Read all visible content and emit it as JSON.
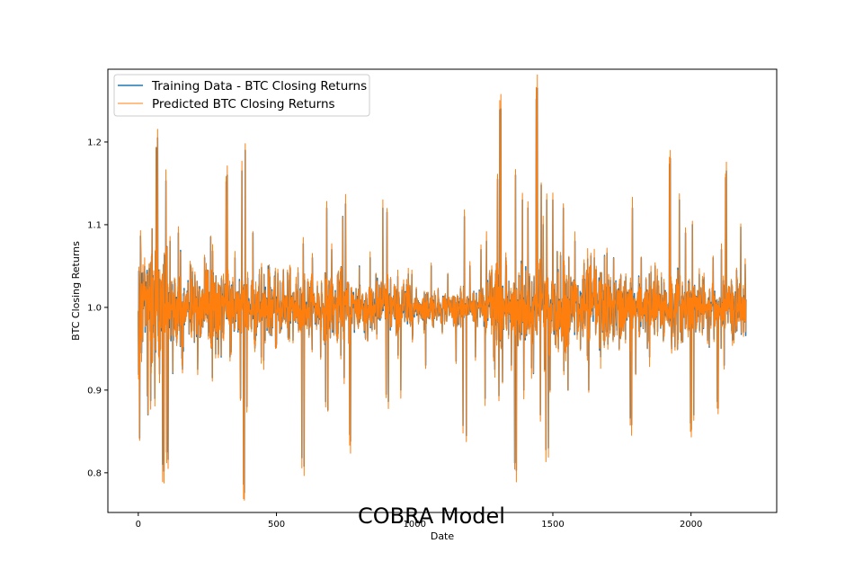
{
  "chart_data": {
    "type": "line",
    "title": "COBRA Model",
    "xlabel": "Date",
    "ylabel": "BTC Closing Returns",
    "xlim": [
      -110,
      2310
    ],
    "ylim": [
      0.752,
      1.288
    ],
    "x_ticks": [
      0,
      500,
      1000,
      1500,
      2000
    ],
    "y_ticks": [
      0.8,
      0.9,
      1.0,
      1.1,
      1.2
    ],
    "x_tick_labels": [
      "0",
      "500",
      "1000",
      "1500",
      "2000"
    ],
    "y_tick_labels": [
      "0.8",
      "0.9",
      "1.0",
      "1.1",
      "1.2"
    ],
    "grid": false,
    "legend": "upper left",
    "n_points": 2200,
    "spikes": [
      {
        "x": 5,
        "y": 0.842
      },
      {
        "x": 8,
        "y": 1.086
      },
      {
        "x": 12,
        "y": 0.945
      },
      {
        "x": 25,
        "y": 0.97
      },
      {
        "x": 35,
        "y": 0.87
      },
      {
        "x": 50,
        "y": 1.095
      },
      {
        "x": 60,
        "y": 0.89
      },
      {
        "x": 65,
        "y": 1.193
      },
      {
        "x": 70,
        "y": 1.205
      },
      {
        "x": 80,
        "y": 0.95
      },
      {
        "x": 88,
        "y": 0.81
      },
      {
        "x": 93,
        "y": 0.802
      },
      {
        "x": 100,
        "y": 1.153
      },
      {
        "x": 103,
        "y": 0.825
      },
      {
        "x": 108,
        "y": 0.816
      },
      {
        "x": 115,
        "y": 1.08
      },
      {
        "x": 125,
        "y": 0.92
      },
      {
        "x": 145,
        "y": 1.09
      },
      {
        "x": 160,
        "y": 0.925
      },
      {
        "x": 190,
        "y": 1.05
      },
      {
        "x": 215,
        "y": 0.925
      },
      {
        "x": 240,
        "y": 1.06
      },
      {
        "x": 262,
        "y": 1.085
      },
      {
        "x": 268,
        "y": 0.915
      },
      {
        "x": 300,
        "y": 0.94
      },
      {
        "x": 318,
        "y": 1.152
      },
      {
        "x": 322,
        "y": 1.16
      },
      {
        "x": 332,
        "y": 0.94
      },
      {
        "x": 350,
        "y": 1.06
      },
      {
        "x": 370,
        "y": 0.89
      },
      {
        "x": 375,
        "y": 1.165
      },
      {
        "x": 381,
        "y": 0.786
      },
      {
        "x": 384,
        "y": 0.776
      },
      {
        "x": 387,
        "y": 1.19
      },
      {
        "x": 393,
        "y": 0.88
      },
      {
        "x": 415,
        "y": 1.09
      },
      {
        "x": 445,
        "y": 0.94
      },
      {
        "x": 470,
        "y": 1.05
      },
      {
        "x": 500,
        "y": 0.955
      },
      {
        "x": 525,
        "y": 1.045
      },
      {
        "x": 560,
        "y": 0.96
      },
      {
        "x": 592,
        "y": 0.818
      },
      {
        "x": 597,
        "y": 1.077
      },
      {
        "x": 600,
        "y": 0.808
      },
      {
        "x": 630,
        "y": 1.06
      },
      {
        "x": 660,
        "y": 0.94
      },
      {
        "x": 678,
        "y": 0.886
      },
      {
        "x": 682,
        "y": 1.12
      },
      {
        "x": 686,
        "y": 0.876
      },
      {
        "x": 700,
        "y": 1.07
      },
      {
        "x": 720,
        "y": 0.96
      },
      {
        "x": 740,
        "y": 1.11
      },
      {
        "x": 745,
        "y": 0.915
      },
      {
        "x": 750,
        "y": 1.125
      },
      {
        "x": 765,
        "y": 0.846
      },
      {
        "x": 768,
        "y": 0.838
      },
      {
        "x": 800,
        "y": 1.05
      },
      {
        "x": 830,
        "y": 0.96
      },
      {
        "x": 860,
        "y": 1.04
      },
      {
        "x": 885,
        "y": 1.12
      },
      {
        "x": 897,
        "y": 0.895
      },
      {
        "x": 900,
        "y": 1.115
      },
      {
        "x": 905,
        "y": 0.886
      },
      {
        "x": 935,
        "y": 0.97
      },
      {
        "x": 950,
        "y": 0.9
      },
      {
        "x": 990,
        "y": 1.04
      },
      {
        "x": 1040,
        "y": 0.93
      },
      {
        "x": 1060,
        "y": 1.05
      },
      {
        "x": 1100,
        "y": 0.97
      },
      {
        "x": 1120,
        "y": 1.04
      },
      {
        "x": 1150,
        "y": 0.935
      },
      {
        "x": 1175,
        "y": 0.857
      },
      {
        "x": 1180,
        "y": 1.11
      },
      {
        "x": 1187,
        "y": 0.845
      },
      {
        "x": 1200,
        "y": 1.05
      },
      {
        "x": 1220,
        "y": 0.94
      },
      {
        "x": 1240,
        "y": 1.07
      },
      {
        "x": 1255,
        "y": 0.89
      },
      {
        "x": 1260,
        "y": 1.08
      },
      {
        "x": 1290,
        "y": 0.925
      },
      {
        "x": 1300,
        "y": 1.155
      },
      {
        "x": 1305,
        "y": 0.893
      },
      {
        "x": 1308,
        "y": 1.239
      },
      {
        "x": 1312,
        "y": 1.24
      },
      {
        "x": 1318,
        "y": 0.91
      },
      {
        "x": 1330,
        "y": 1.06
      },
      {
        "x": 1350,
        "y": 0.93
      },
      {
        "x": 1362,
        "y": 0.812
      },
      {
        "x": 1365,
        "y": 1.16
      },
      {
        "x": 1368,
        "y": 0.803
      },
      {
        "x": 1390,
        "y": 1.13
      },
      {
        "x": 1395,
        "y": 0.9
      },
      {
        "x": 1410,
        "y": 1.12
      },
      {
        "x": 1430,
        "y": 0.92
      },
      {
        "x": 1440,
        "y": 1.252
      },
      {
        "x": 1444,
        "y": 1.265
      },
      {
        "x": 1455,
        "y": 0.87
      },
      {
        "x": 1458,
        "y": 1.148
      },
      {
        "x": 1465,
        "y": 1.1
      },
      {
        "x": 1475,
        "y": 0.828
      },
      {
        "x": 1478,
        "y": 1.13
      },
      {
        "x": 1484,
        "y": 0.83
      },
      {
        "x": 1490,
        "y": 0.9
      },
      {
        "x": 1500,
        "y": 1.13
      },
      {
        "x": 1520,
        "y": 0.95
      },
      {
        "x": 1538,
        "y": 1.12
      },
      {
        "x": 1555,
        "y": 0.9
      },
      {
        "x": 1580,
        "y": 1.08
      },
      {
        "x": 1600,
        "y": 0.95
      },
      {
        "x": 1630,
        "y": 0.9
      },
      {
        "x": 1650,
        "y": 1.06
      },
      {
        "x": 1680,
        "y": 0.97
      },
      {
        "x": 1720,
        "y": 1.06
      },
      {
        "x": 1740,
        "y": 0.95
      },
      {
        "x": 1780,
        "y": 0.866
      },
      {
        "x": 1785,
        "y": 0.858
      },
      {
        "x": 1788,
        "y": 1.12
      },
      {
        "x": 1800,
        "y": 0.92
      },
      {
        "x": 1820,
        "y": 1.06
      },
      {
        "x": 1850,
        "y": 0.94
      },
      {
        "x": 1870,
        "y": 1.05
      },
      {
        "x": 1900,
        "y": 0.96
      },
      {
        "x": 1922,
        "y": 1.173
      },
      {
        "x": 1925,
        "y": 1.18
      },
      {
        "x": 1930,
        "y": 0.95
      },
      {
        "x": 1958,
        "y": 1.13
      },
      {
        "x": 1965,
        "y": 0.96
      },
      {
        "x": 1980,
        "y": 1.09
      },
      {
        "x": 1998,
        "y": 0.86
      },
      {
        "x": 2001,
        "y": 0.852
      },
      {
        "x": 2005,
        "y": 1.1
      },
      {
        "x": 2010,
        "y": 0.87
      },
      {
        "x": 2030,
        "y": 1.04
      },
      {
        "x": 2060,
        "y": 0.96
      },
      {
        "x": 2080,
        "y": 1.06
      },
      {
        "x": 2095,
        "y": 0.886
      },
      {
        "x": 2098,
        "y": 0.878
      },
      {
        "x": 2110,
        "y": 1.07
      },
      {
        "x": 2120,
        "y": 0.93
      },
      {
        "x": 2125,
        "y": 1.157
      },
      {
        "x": 2128,
        "y": 1.165
      },
      {
        "x": 2150,
        "y": 0.96
      },
      {
        "x": 2165,
        "y": 1.045
      },
      {
        "x": 2180,
        "y": 1.097
      },
      {
        "x": 2190,
        "y": 0.97
      },
      {
        "x": 2196,
        "y": 1.052
      }
    ],
    "series": [
      {
        "name": "Training Data - BTC Closing Returns",
        "color": "#1f77b4",
        "line_width": 1.5
      },
      {
        "name": "Predicted BTC Closing Returns",
        "color": "#ff7f0e",
        "line_width": 1.0
      }
    ]
  }
}
